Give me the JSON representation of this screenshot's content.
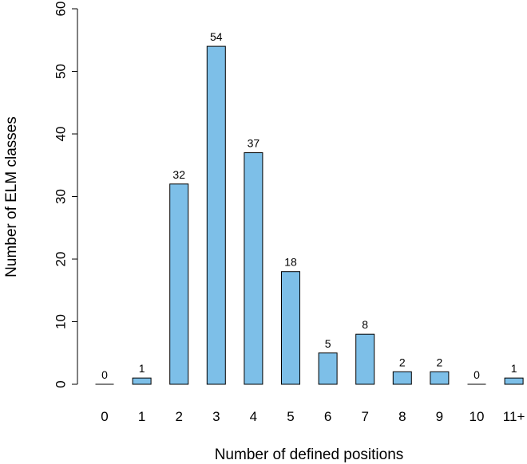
{
  "chart_data": {
    "type": "bar",
    "categories": [
      "0",
      "1",
      "2",
      "3",
      "4",
      "5",
      "6",
      "7",
      "8",
      "9",
      "10",
      "11+"
    ],
    "values": [
      0,
      1,
      32,
      54,
      37,
      18,
      5,
      8,
      2,
      2,
      0,
      1
    ],
    "data_labels": [
      "0",
      "1",
      "32",
      "54",
      "37",
      "18",
      "5",
      "8",
      "2",
      "2",
      "0",
      "1"
    ],
    "xlabel": "Number of defined positions",
    "ylabel": "Number of ELM classes",
    "ylim": [
      0,
      60
    ],
    "yticks": [
      "0",
      "10",
      "20",
      "30",
      "40",
      "50",
      "60"
    ],
    "grid": false,
    "bar_color": "#7dbfe8",
    "bar_edge_color": "#000000"
  }
}
